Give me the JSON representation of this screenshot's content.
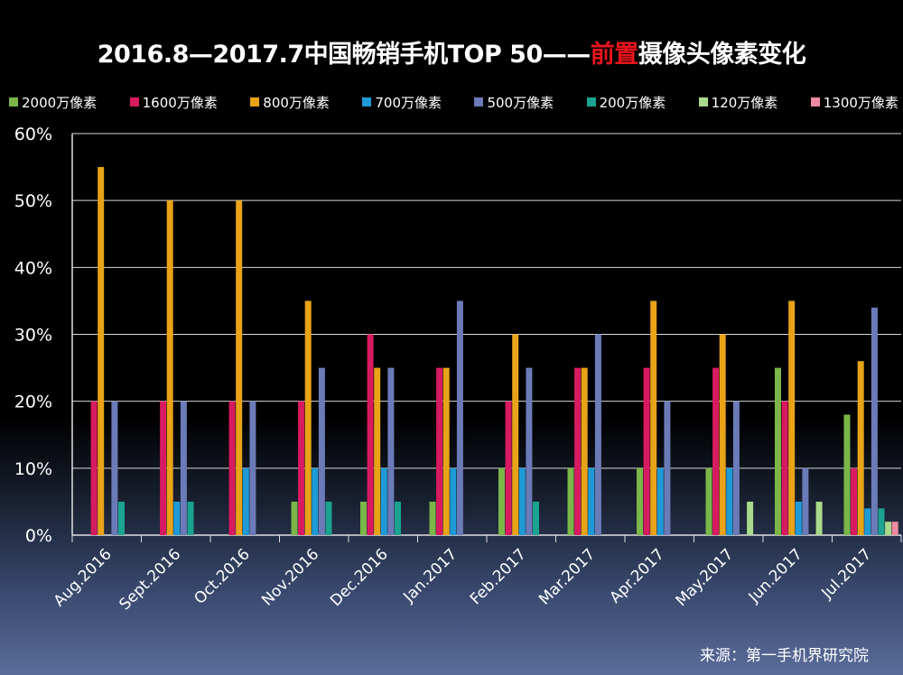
{
  "title": {
    "prefix": "2016.8—2017.7中国畅销手机TOP 50——",
    "highlight": "前置",
    "suffix": "摄像头像素变化"
  },
  "source": "来源：第一手机界研究院",
  "chart_data": {
    "type": "bar",
    "categories": [
      "Aug.2016",
      "Sept.2016",
      "Oct.2016",
      "Nov.2016",
      "Dec.2016",
      "Jan.2017",
      "Feb.2017",
      "Mar.2017",
      "Apr.2017",
      "May.2017",
      "Jun.2017",
      "Jul.2017"
    ],
    "y_ticks": [
      "0%",
      "10%",
      "20%",
      "30%",
      "40%",
      "50%",
      "60%"
    ],
    "ylim": [
      0,
      60
    ],
    "grid": true,
    "legend_position": "top",
    "series": [
      {
        "name": "2000万像素",
        "color": "#7ab648",
        "values": [
          0,
          0,
          0,
          5,
          5,
          5,
          10,
          10,
          10,
          10,
          25,
          18
        ]
      },
      {
        "name": "1600万像素",
        "color": "#d81b60",
        "values": [
          20,
          20,
          20,
          20,
          30,
          25,
          20,
          25,
          25,
          25,
          20,
          10
        ]
      },
      {
        "name": "800万像素",
        "color": "#e8a317",
        "values": [
          55,
          50,
          50,
          35,
          25,
          25,
          30,
          25,
          35,
          30,
          35,
          26
        ]
      },
      {
        "name": "700万像素",
        "color": "#1e9bd7",
        "values": [
          0,
          5,
          10,
          10,
          10,
          10,
          10,
          10,
          10,
          10,
          5,
          4
        ]
      },
      {
        "name": "500万像素",
        "color": "#6b7bb8",
        "values": [
          20,
          20,
          20,
          25,
          25,
          35,
          25,
          30,
          20,
          20,
          10,
          34
        ]
      },
      {
        "name": "200万像素",
        "color": "#1aa390",
        "values": [
          5,
          5,
          0,
          5,
          5,
          0,
          5,
          0,
          0,
          0,
          0,
          4
        ]
      },
      {
        "name": "120万像素",
        "color": "#a9d98a",
        "values": [
          0,
          0,
          0,
          0,
          0,
          0,
          0,
          0,
          0,
          5,
          5,
          2
        ]
      },
      {
        "name": "1300万像素",
        "color": "#f08aa0",
        "values": [
          0,
          0,
          0,
          0,
          0,
          0,
          0,
          0,
          0,
          0,
          0,
          2
        ]
      }
    ]
  }
}
